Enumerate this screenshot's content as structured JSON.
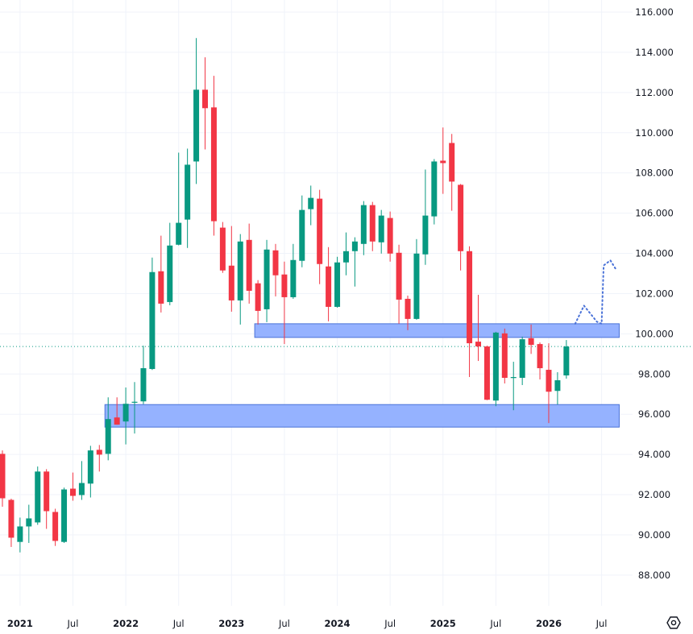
{
  "chart_data": {
    "type": "candlestick",
    "interval": "monthly",
    "ylim": [
      86.5,
      117
    ],
    "y_ticks": [
      "88.000",
      "90.000",
      "92.000",
      "94.000",
      "96.000",
      "98.000",
      "100.000",
      "102.000",
      "104.000",
      "106.000",
      "108.000",
      "110.000",
      "112.000",
      "114.000",
      "116.000"
    ],
    "x_ticks": [
      {
        "label": "2021",
        "date": "2021-01",
        "year": true
      },
      {
        "label": "Jul",
        "date": "2021-07",
        "year": false
      },
      {
        "label": "2022",
        "date": "2022-01",
        "year": true
      },
      {
        "label": "Jul",
        "date": "2022-07",
        "year": false
      },
      {
        "label": "2023",
        "date": "2023-01",
        "year": true
      },
      {
        "label": "Jul",
        "date": "2023-07",
        "year": false
      },
      {
        "label": "2024",
        "date": "2024-01",
        "year": true
      },
      {
        "label": "Jul",
        "date": "2024-07",
        "year": false
      },
      {
        "label": "2025",
        "date": "2025-01",
        "year": true
      },
      {
        "label": "Jul",
        "date": "2025-07",
        "year": false
      },
      {
        "label": "2026",
        "date": "2026-01",
        "year": true
      },
      {
        "label": "Jul",
        "date": "2026-07",
        "year": false
      }
    ],
    "grid": true,
    "colors": {
      "up": "#089981",
      "down": "#F23645",
      "zone_fill": "#8FAEFF",
      "zone_border": "#4A72D8",
      "projection": "#4A72D8",
      "last_price_line": "#089981",
      "grid": "#F0F3FA"
    },
    "candles_columns": [
      "date",
      "open",
      "high",
      "low",
      "close"
    ],
    "candles": [
      [
        "2020-11",
        94.03,
        94.2,
        91.4,
        91.82
      ],
      [
        "2020-12",
        91.74,
        91.8,
        89.4,
        89.86
      ],
      [
        "2021-01",
        89.65,
        90.86,
        89.13,
        90.42
      ],
      [
        "2021-02",
        90.42,
        91.5,
        89.6,
        90.82
      ],
      [
        "2021-03",
        90.62,
        93.4,
        90.5,
        93.15
      ],
      [
        "2021-04",
        93.15,
        93.27,
        90.3,
        91.18
      ],
      [
        "2021-05",
        91.14,
        91.3,
        89.45,
        89.7
      ],
      [
        "2021-06",
        89.65,
        92.35,
        89.6,
        92.26
      ],
      [
        "2021-07",
        92.3,
        93.1,
        91.7,
        91.94
      ],
      [
        "2021-08",
        91.98,
        93.67,
        91.74,
        92.58
      ],
      [
        "2021-09",
        92.55,
        94.43,
        91.86,
        94.2
      ],
      [
        "2021-10",
        94.23,
        94.47,
        93.15,
        93.99
      ],
      [
        "2021-11",
        94.03,
        96.84,
        93.71,
        95.76
      ],
      [
        "2021-12",
        95.84,
        96.84,
        95.48,
        95.48
      ],
      [
        "2022-01",
        95.64,
        97.33,
        94.5,
        96.52
      ],
      [
        "2022-02",
        96.58,
        97.6,
        95.04,
        96.62
      ],
      [
        "2022-03",
        96.64,
        99.41,
        96.5,
        98.29
      ],
      [
        "2022-04",
        98.25,
        103.79,
        98.2,
        103.07
      ],
      [
        "2022-05",
        103.11,
        104.88,
        101.06,
        101.5
      ],
      [
        "2022-06",
        101.58,
        105.52,
        101.42,
        104.39
      ],
      [
        "2022-07",
        104.43,
        109.01,
        104.4,
        105.52
      ],
      [
        "2022-08",
        105.68,
        109.21,
        104.27,
        108.41
      ],
      [
        "2022-09",
        108.57,
        114.71,
        107.45,
        112.14
      ],
      [
        "2022-10",
        112.14,
        113.75,
        109.17,
        111.22
      ],
      [
        "2022-11",
        111.26,
        112.83,
        104.88,
        105.6
      ],
      [
        "2022-12",
        105.28,
        105.56,
        103.03,
        103.15
      ],
      [
        "2023-01",
        103.39,
        105.36,
        101.1,
        101.66
      ],
      [
        "2023-02",
        101.66,
        104.96,
        100.46,
        104.59
      ],
      [
        "2023-03",
        104.67,
        105.48,
        101.5,
        102.14
      ],
      [
        "2023-04",
        102.51,
        102.67,
        100.46,
        101.14
      ],
      [
        "2023-05",
        101.22,
        104.67,
        100.58,
        104.19
      ],
      [
        "2023-06",
        104.15,
        104.47,
        101.86,
        102.91
      ],
      [
        "2023-07",
        102.95,
        103.59,
        99.49,
        101.82
      ],
      [
        "2023-08",
        101.82,
        104.47,
        101.74,
        103.67
      ],
      [
        "2023-09",
        103.63,
        106.88,
        103.31,
        106.16
      ],
      [
        "2023-10",
        106.2,
        107.37,
        105.4,
        106.76
      ],
      [
        "2023-11",
        106.72,
        107.16,
        102.47,
        103.47
      ],
      [
        "2023-12",
        103.35,
        104.31,
        100.62,
        101.34
      ],
      [
        "2024-01",
        101.34,
        103.83,
        101.3,
        103.55
      ],
      [
        "2024-02",
        103.55,
        105.04,
        102.91,
        104.11
      ],
      [
        "2024-03",
        104.11,
        104.8,
        102.35,
        104.59
      ],
      [
        "2024-04",
        104.47,
        106.6,
        103.91,
        106.4
      ],
      [
        "2024-05",
        106.4,
        106.56,
        104.11,
        104.59
      ],
      [
        "2024-06",
        104.55,
        106.16,
        103.99,
        105.88
      ],
      [
        "2024-07",
        105.76,
        106.08,
        103.59,
        103.99
      ],
      [
        "2024-08",
        104.03,
        104.43,
        100.5,
        101.7
      ],
      [
        "2024-09",
        101.74,
        101.9,
        100.18,
        100.74
      ],
      [
        "2024-10",
        100.74,
        104.71,
        100.7,
        103.99
      ],
      [
        "2024-11",
        103.95,
        108.17,
        103.43,
        105.88
      ],
      [
        "2024-12",
        105.84,
        108.69,
        105.44,
        108.57
      ],
      [
        "2025-01",
        108.61,
        110.26,
        106.96,
        108.49
      ],
      [
        "2025-02",
        109.49,
        109.94,
        106.12,
        107.57
      ],
      [
        "2025-03",
        107.41,
        107.45,
        103.15,
        104.11
      ],
      [
        "2025-04",
        104.11,
        104.35,
        97.85,
        99.53
      ],
      [
        "2025-05",
        99.61,
        101.94,
        98.65,
        99.37
      ],
      [
        "2025-06",
        99.37,
        99.41,
        96.7,
        96.72
      ],
      [
        "2025-07",
        96.68,
        100.1,
        96.4,
        100.06
      ],
      [
        "2025-08",
        100.02,
        100.26,
        97.53,
        97.81
      ],
      [
        "2025-09",
        97.8,
        98.61,
        96.2,
        97.85
      ],
      [
        "2025-10",
        97.81,
        99.86,
        97.45,
        99.73
      ],
      [
        "2025-11",
        99.78,
        100.46,
        99.0,
        99.45
      ],
      [
        "2025-12",
        99.49,
        99.57,
        97.73,
        98.29
      ],
      [
        "2026-01",
        98.21,
        99.53,
        95.56,
        97.12
      ],
      [
        "2026-02",
        97.16,
        98.09,
        96.48,
        97.69
      ],
      [
        "2026-03",
        97.93,
        99.69,
        97.77,
        99.37
      ]
    ],
    "last_price": 99.37,
    "zones": [
      {
        "start": "2023-04",
        "end": "2026-09",
        "top": 100.5,
        "bottom": 99.82
      },
      {
        "start": "2021-11",
        "end": "2026-09",
        "top": 96.48,
        "bottom": 95.36
      }
    ],
    "projection": [
      [
        "2026-04-01",
        100.5
      ],
      [
        "2026-05-01",
        101.4
      ],
      [
        "2026-06-15",
        100.6
      ],
      [
        "2026-07-01",
        100.5
      ],
      [
        "2026-07-08",
        103.4
      ],
      [
        "2026-08-01",
        103.65
      ],
      [
        "2026-08-20",
        103.2
      ]
    ]
  },
  "ui": {
    "settings_icon": "gear-icon"
  }
}
